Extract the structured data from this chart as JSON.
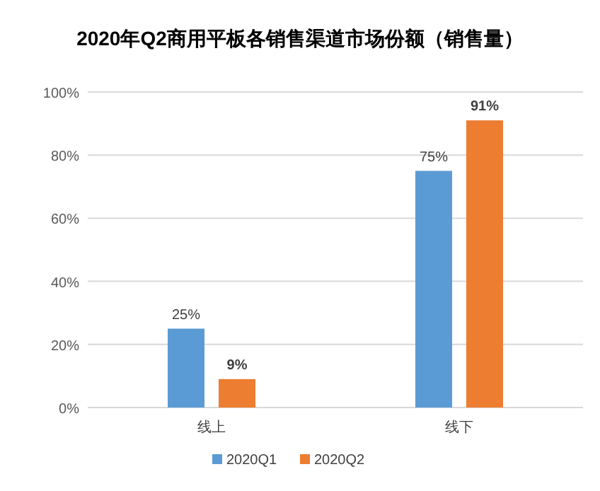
{
  "chart_data": {
    "type": "bar",
    "title": "2020年Q2商用平板各销售渠道市场份额（销售量）",
    "categories": [
      "线上",
      "线下"
    ],
    "series": [
      {
        "name": "2020Q1",
        "color": "#5b9bd5",
        "values": [
          25,
          75
        ],
        "value_labels": [
          "25%",
          "75%"
        ]
      },
      {
        "name": "2020Q2",
        "color": "#ed7d31",
        "values": [
          9,
          91
        ],
        "value_labels": [
          "9%",
          "91%"
        ]
      }
    ],
    "ylim": [
      0,
      100
    ],
    "yticks": [
      {
        "value": 0,
        "label": "0%"
      },
      {
        "value": 20,
        "label": "20%"
      },
      {
        "value": 40,
        "label": "40%"
      },
      {
        "value": 60,
        "label": "60%"
      },
      {
        "value": 80,
        "label": "80%"
      },
      {
        "value": 100,
        "label": "100%"
      }
    ],
    "grid": "y",
    "legend": "bottom"
  }
}
